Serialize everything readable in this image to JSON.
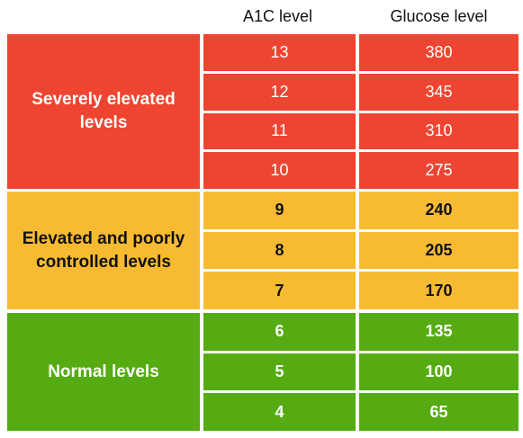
{
  "headers": {
    "a1c": "A1C level",
    "glucose": "Glucose level"
  },
  "colors": {
    "severe": "#ee4532",
    "elevated": "#f7bb33",
    "normal": "#56ab12"
  },
  "groups": [
    {
      "label": "Severely elevated levels",
      "rows": [
        {
          "a1c": "13",
          "glucose": "380"
        },
        {
          "a1c": "12",
          "glucose": "345"
        },
        {
          "a1c": "11",
          "glucose": "310"
        },
        {
          "a1c": "10",
          "glucose": "275"
        }
      ]
    },
    {
      "label": "Elevated and poorly controlled levels",
      "rows": [
        {
          "a1c": "9",
          "glucose": "240"
        },
        {
          "a1c": "8",
          "glucose": "205"
        },
        {
          "a1c": "7",
          "glucose": "170"
        }
      ]
    },
    {
      "label": "Normal levels",
      "rows": [
        {
          "a1c": "6",
          "glucose": "135"
        },
        {
          "a1c": "5",
          "glucose": "100"
        },
        {
          "a1c": "4",
          "glucose": "65"
        }
      ]
    }
  ]
}
